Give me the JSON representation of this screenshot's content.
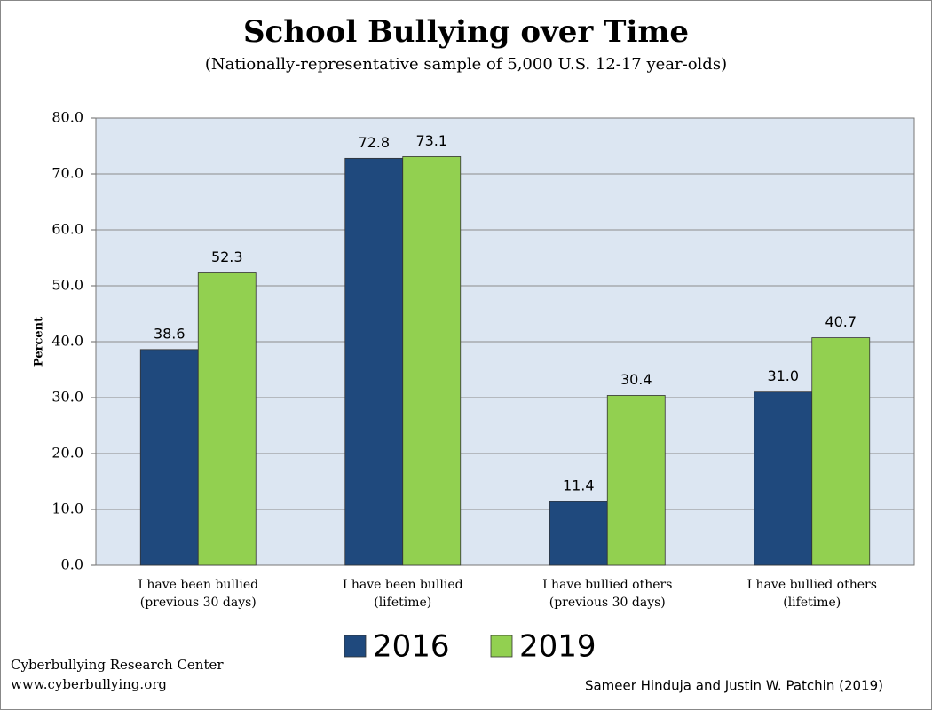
{
  "chart_data": {
    "type": "bar",
    "title": "School Bullying over Time",
    "subtitle": "(Nationally-representative sample of 5,000 U.S. 12-17 year-olds)",
    "y_label": "Percent",
    "categories": [
      "I have been bullied\n(previous 30 days)",
      "I have been bullied\n(lifetime)",
      "I have bullied others\n(previous 30 days)",
      "I have bullied others\n(lifetime)"
    ],
    "series": [
      {
        "name": "2016",
        "color": "#1f497d",
        "values": [
          38.6,
          72.8,
          11.4,
          31.0
        ],
        "value_labels": [
          "38.6",
          "72.8",
          "11.4",
          "31.0"
        ]
      },
      {
        "name": "2019",
        "color": "#92d050",
        "values": [
          52.3,
          73.1,
          30.4,
          40.7
        ],
        "value_labels": [
          "52.3",
          "73.1",
          "30.4",
          "40.7"
        ]
      }
    ],
    "ylim": [
      0,
      80
    ],
    "yticks": [
      {
        "value": 0,
        "label": "0.0"
      },
      {
        "value": 10,
        "label": "10.0"
      },
      {
        "value": 20,
        "label": "20.0"
      },
      {
        "value": 30,
        "label": "30.0"
      },
      {
        "value": 40,
        "label": "40.0"
      },
      {
        "value": 50,
        "label": "50.0"
      },
      {
        "value": 60,
        "label": "60.0"
      },
      {
        "value": 70,
        "label": "70.0"
      },
      {
        "value": 80,
        "label": "80.0"
      }
    ],
    "grid": true,
    "legend": "bottom",
    "footer_left": [
      "Cyberbullying Research Center",
      "www.cyberbullying.org"
    ],
    "footer_right": "Sameer Hinduja and Justin W. Patchin (2019)"
  }
}
